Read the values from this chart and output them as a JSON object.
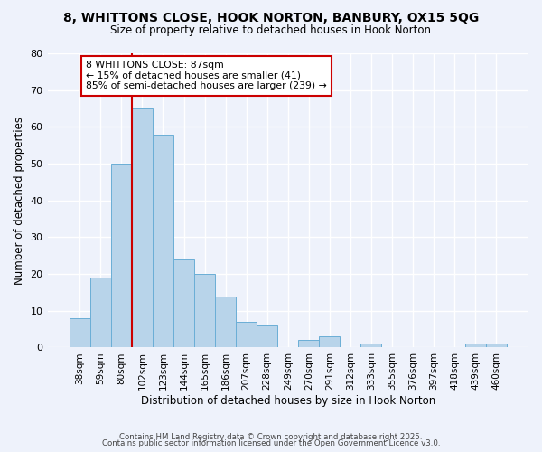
{
  "title": "8, WHITTONS CLOSE, HOOK NORTON, BANBURY, OX15 5QG",
  "subtitle": "Size of property relative to detached houses in Hook Norton",
  "xlabel": "Distribution of detached houses by size in Hook Norton",
  "ylabel": "Number of detached properties",
  "bin_labels": [
    "38sqm",
    "59sqm",
    "80sqm",
    "102sqm",
    "123sqm",
    "144sqm",
    "165sqm",
    "186sqm",
    "207sqm",
    "228sqm",
    "249sqm",
    "270sqm",
    "291sqm",
    "312sqm",
    "333sqm",
    "355sqm",
    "376sqm",
    "397sqm",
    "418sqm",
    "439sqm",
    "460sqm"
  ],
  "bar_values": [
    8,
    19,
    50,
    65,
    58,
    24,
    20,
    14,
    7,
    6,
    0,
    2,
    3,
    0,
    1,
    0,
    0,
    0,
    0,
    1,
    1
  ],
  "bar_color": "#b8d4ea",
  "bar_edge_color": "#6aaed6",
  "vline_x_index": 2,
  "vline_color": "#cc0000",
  "annotation_text": "8 WHITTONS CLOSE: 87sqm\n← 15% of detached houses are smaller (41)\n85% of semi-detached houses are larger (239) →",
  "annotation_box_edge": "#cc0000",
  "ylim": [
    0,
    80
  ],
  "yticks": [
    0,
    10,
    20,
    30,
    40,
    50,
    60,
    70,
    80
  ],
  "background_color": "#eef2fb",
  "grid_color": "#ffffff",
  "footer1": "Contains HM Land Registry data © Crown copyright and database right 2025.",
  "footer2": "Contains public sector information licensed under the Open Government Licence v3.0."
}
